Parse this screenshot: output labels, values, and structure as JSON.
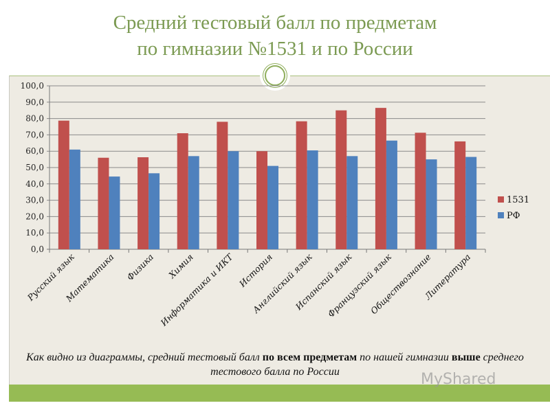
{
  "title_line1": "Средний тестовый балл по предметам",
  "title_line2": "по гимназии №1531 и по России",
  "caption": {
    "part1": "Как видно из диаграммы, средний тестовый балл ",
    "bold1": "по всем предметам",
    "part2": " по нашей гимназии ",
    "bold2": "выше",
    "part3": " среднего тестового балла по России"
  },
  "watermark": "MyShared",
  "chart_data": {
    "type": "bar",
    "categories": [
      "Русский язык",
      "Математика",
      "Физика",
      "Химия",
      "Информатика и ИКТ",
      "История",
      "Английский язык",
      "Испанский язык",
      "Французский язык",
      "Обществознание",
      "Литература"
    ],
    "series": [
      {
        "name": "1531",
        "color": "#c0504d",
        "values": [
          78.7,
          56.0,
          56.3,
          71.0,
          78.0,
          60.0,
          78.3,
          85.0,
          86.5,
          71.3,
          66.0
        ]
      },
      {
        "name": "РФ",
        "color": "#4f81bd",
        "values": [
          61.0,
          44.5,
          46.5,
          57.0,
          60.0,
          51.0,
          60.5,
          57.0,
          66.5,
          55.0,
          56.5
        ]
      }
    ],
    "ylim": [
      0,
      100
    ],
    "yticks": [
      "0,0",
      "10,0",
      "20,0",
      "30,0",
      "40,0",
      "50,0",
      "60,0",
      "70,0",
      "80,0",
      "90,0",
      "100,0"
    ],
    "grid": true,
    "legend": "right"
  }
}
